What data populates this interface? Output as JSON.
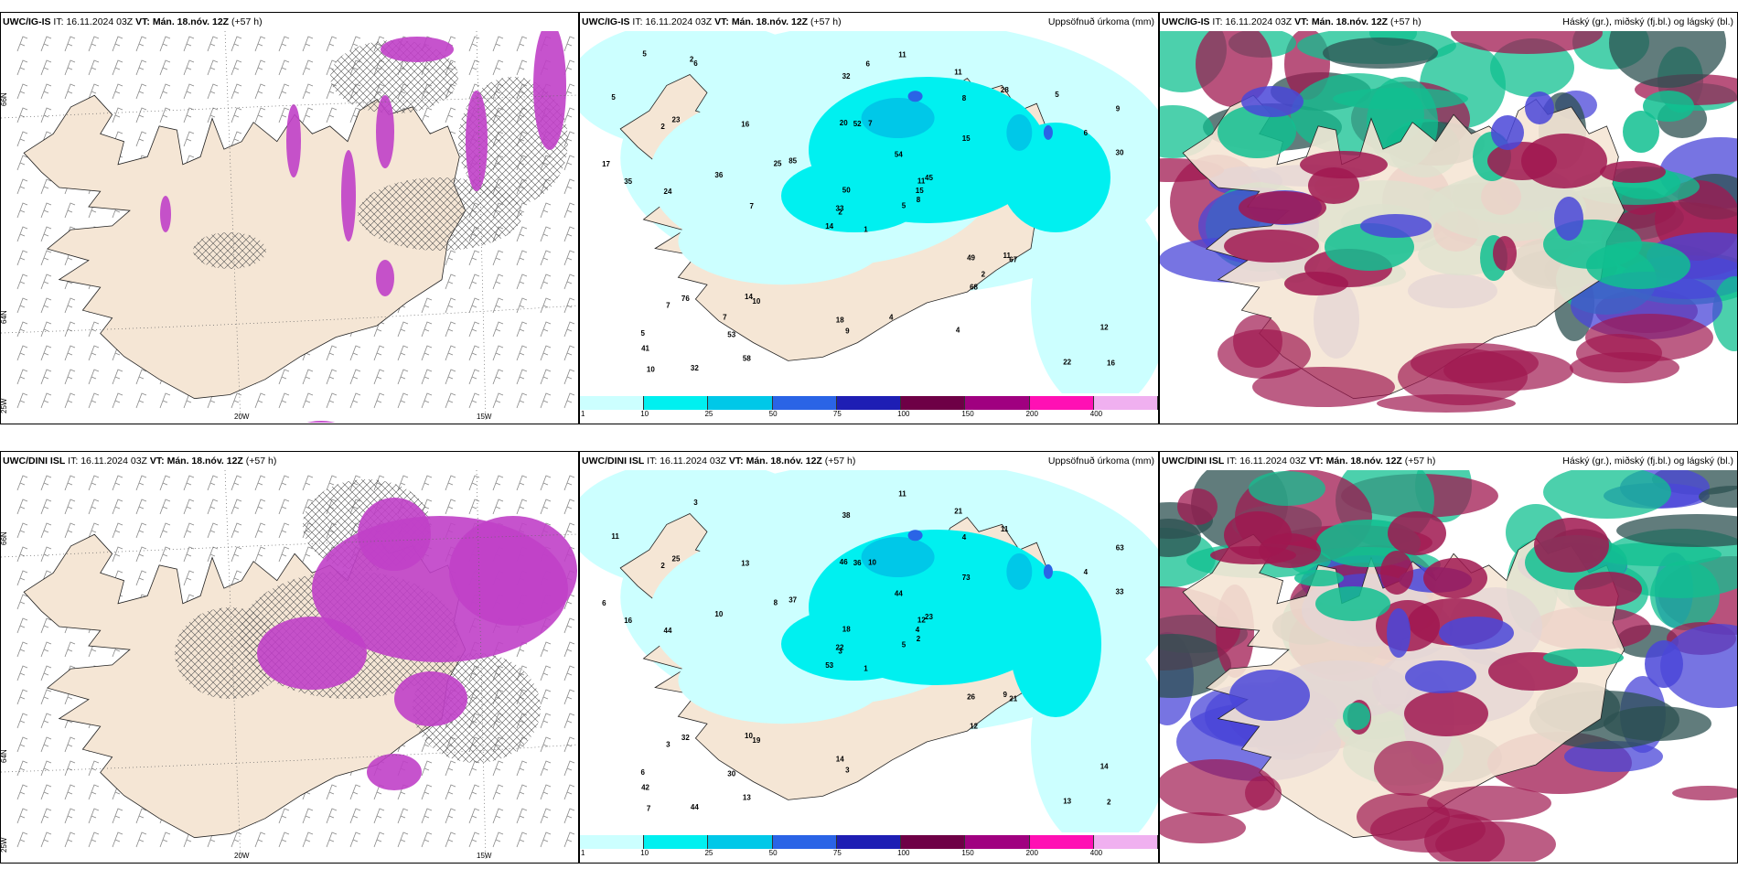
{
  "panels": {
    "p1": {
      "model": "UWC/IG-IS",
      "it_label": "IT:",
      "it": "16.11.2024 03Z",
      "vt_label": "VT:",
      "vt": "Mán. 18.nóv. 12Z",
      "lead": "(+57 h)",
      "right": ""
    },
    "p2": {
      "model": "UWC/IG-IS",
      "it_label": "IT:",
      "it": "16.11.2024 03Z",
      "vt_label": "VT:",
      "vt": "Mán. 18.nóv. 12Z",
      "lead": "(+57 h)",
      "right": "Uppsöfnuð úrkoma (mm)"
    },
    "p3": {
      "model": "UWC/IG-IS",
      "it_label": "IT:",
      "it": "16.11.2024 03Z",
      "vt_label": "VT:",
      "vt": "Mán. 18.nóv. 12Z",
      "lead": "(+57 h)",
      "right": "Háský (gr.), miðský (fj.bl.) og lágský (bl.)"
    },
    "p4": {
      "model": "UWC/DINI ISL",
      "it_label": "IT:",
      "it": "16.11.2024 03Z",
      "vt_label": "VT:",
      "vt": "Mán. 18.nóv. 12Z",
      "lead": "(+57 h)",
      "right": ""
    },
    "p5": {
      "model": "UWC/DINI ISL",
      "it_label": "IT:",
      "it": "16.11.2024 03Z",
      "vt_label": "VT:",
      "vt": "Mán. 18.nóv. 12Z",
      "lead": "(+57 h)",
      "right": "Uppsöfnuð úrkoma (mm)"
    },
    "p6": {
      "model": "UWC/DINI ISL",
      "it_label": "IT:",
      "it": "16.11.2024 03Z",
      "vt_label": "VT:",
      "vt": "Mán. 18.nóv. 12Z",
      "lead": "(+57 h)",
      "right": "Háský (gr.), miðský (fj.bl.) og lágský (bl.)"
    }
  },
  "axis_labels": {
    "lat66": "66N",
    "lat64": "64N",
    "lon25": "25W",
    "lon20": "20W",
    "lon15": "15W"
  },
  "colorbar": {
    "ticks": [
      "1",
      "10",
      "25",
      "50",
      "75",
      "100",
      "150",
      "200",
      "400"
    ],
    "colors": [
      "#ccffff",
      "#00f0f0",
      "#00c8e8",
      "#2a64e6",
      "#1e1eb4",
      "#6e0046",
      "#a00080",
      "#ff10b4",
      "#f0b0f0"
    ]
  },
  "precip_values_top": [
    "1",
    "2",
    "2",
    "5",
    "11",
    "10",
    "11",
    "7",
    "8",
    "5",
    "6",
    "16",
    "24",
    "9",
    "14",
    "15",
    "32",
    "20",
    "54",
    "76",
    "85",
    "41",
    "53",
    "52",
    "45",
    "67",
    "23",
    "32",
    "35",
    "49",
    "30",
    "33",
    "18",
    "50",
    "16",
    "28",
    "14",
    "22",
    "12",
    "11",
    "11",
    "25",
    "36",
    "68",
    "58",
    "17",
    "15",
    "10",
    "9",
    "8",
    "7",
    "6",
    "5",
    "2",
    "4",
    "7",
    "2",
    "5",
    "4",
    "5",
    "6",
    "7"
  ],
  "precip_values_bottom": [
    "1",
    "2",
    "3",
    "6",
    "12",
    "19",
    "21",
    "10",
    "4",
    "5",
    "3",
    "2",
    "44",
    "63",
    "53",
    "73",
    "44",
    "46",
    "44",
    "32",
    "37",
    "42",
    "30",
    "36",
    "23",
    "21",
    "25",
    "38",
    "16",
    "26",
    "33",
    "22",
    "14",
    "18",
    "13",
    "11",
    "10",
    "13",
    "14",
    "9",
    "11",
    "8",
    "10",
    "12",
    "13",
    "6",
    "4",
    "7",
    "3",
    "2",
    "3",
    "4",
    "11"
  ],
  "colors": {
    "land": "#f5e6d5",
    "sea": "#ffffff",
    "hatch": "#555555",
    "wind": "#888888",
    "precip_purple": "#c040c8",
    "high_cloud": "#10c090",
    "mid_cloud": "#4a46d8",
    "low_cloud": "#a01850"
  }
}
